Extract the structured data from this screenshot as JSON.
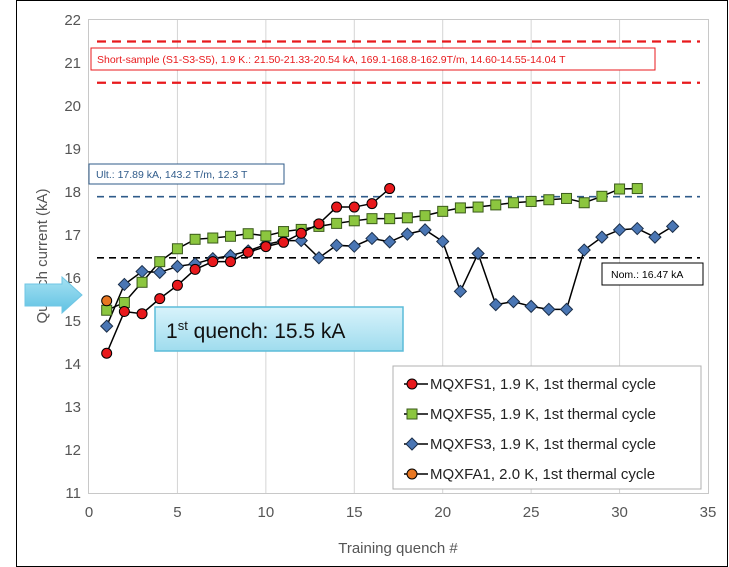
{
  "chart_data": {
    "type": "line",
    "xlabel": "Training quench #",
    "ylabel": "Quench current (kA)",
    "xlim": [
      0,
      35
    ],
    "ylim": [
      11,
      22
    ],
    "xticks": [
      0,
      5,
      10,
      15,
      20,
      25,
      30,
      35
    ],
    "yticks": [
      11,
      12,
      13,
      14,
      15,
      16,
      17,
      18,
      19,
      20,
      21,
      22
    ],
    "grid": "vertical",
    "legend_position": "bottom-right",
    "series": [
      {
        "name": "MQXFS1, 1.9 K, 1st thermal cycle",
        "marker": "circle",
        "color": "#e8191c",
        "x": [
          1,
          2,
          3,
          4,
          5,
          6,
          7,
          8,
          9,
          10,
          11,
          12,
          13,
          14,
          15,
          16,
          17
        ],
        "y": [
          14.25,
          15.22,
          15.17,
          15.52,
          15.83,
          16.2,
          16.38,
          16.38,
          16.6,
          16.73,
          16.83,
          17.04,
          17.26,
          17.65,
          17.65,
          17.73,
          18.08
        ]
      },
      {
        "name": "MQXFS5, 1.9 K, 1st thermal cycle",
        "marker": "square",
        "color": "#8cc63f",
        "x": [
          1,
          2,
          3,
          4,
          5,
          6,
          7,
          8,
          9,
          10,
          11,
          12,
          13,
          14,
          15,
          16,
          17,
          18,
          19,
          20,
          21,
          22,
          23,
          24,
          25,
          26,
          27,
          28,
          29,
          30,
          31
        ],
        "y": [
          15.25,
          15.43,
          15.9,
          16.38,
          16.68,
          16.9,
          16.93,
          16.97,
          17.03,
          16.98,
          17.08,
          17.13,
          17.2,
          17.27,
          17.33,
          17.38,
          17.38,
          17.4,
          17.45,
          17.55,
          17.63,
          17.65,
          17.7,
          17.75,
          17.78,
          17.82,
          17.85,
          17.75,
          17.9,
          18.07,
          18.08
        ]
      },
      {
        "name": "MQXFS3, 1.9 K, 1st thermal cycle",
        "marker": "diamond",
        "color": "#4a76b4",
        "x": [
          1,
          2,
          3,
          4,
          5,
          6,
          7,
          8,
          9,
          10,
          11,
          12,
          13,
          14,
          15,
          16,
          17,
          18,
          19,
          20,
          21,
          22,
          23,
          24,
          25,
          26,
          27,
          28,
          29,
          30,
          31,
          32,
          33
        ],
        "y": [
          14.88,
          15.85,
          16.15,
          16.13,
          16.27,
          16.33,
          16.45,
          16.52,
          16.63,
          16.78,
          16.87,
          16.87,
          16.47,
          16.76,
          16.74,
          16.92,
          16.84,
          17.02,
          17.12,
          16.85,
          15.69,
          16.57,
          15.38,
          15.45,
          15.34,
          15.27,
          15.27,
          16.65,
          16.95,
          17.12,
          17.15,
          16.95,
          17.2
        ]
      },
      {
        "name": "MQXFA1, 2.0 K, 1st thermal cycle",
        "marker": "circle",
        "color": "#e87722",
        "x": [
          1
        ],
        "y": [
          15.47
        ]
      }
    ],
    "reference_lines": [
      {
        "label": "Short-sample (S1-S3-S5), 1.9 K.: 21.50-21.33-20.54 kA, 169.1-168.8-162.9T/m, 14.60-14.55-14.04 T",
        "y": [
          21.5,
          20.54
        ],
        "color": "#e8191c"
      },
      {
        "label": "Ult.: 17.89 kA, 143.2 T/m, 12.3 T",
        "y": [
          17.89
        ],
        "color": "#2f5b8a"
      },
      {
        "label": "Nom.: 16.47 kA",
        "y": [
          16.47
        ],
        "color": "#000000"
      }
    ],
    "annotation": {
      "prefix": "1",
      "superscript": "st",
      "text": " quench: 15.5 kA",
      "value": 15.5
    }
  }
}
